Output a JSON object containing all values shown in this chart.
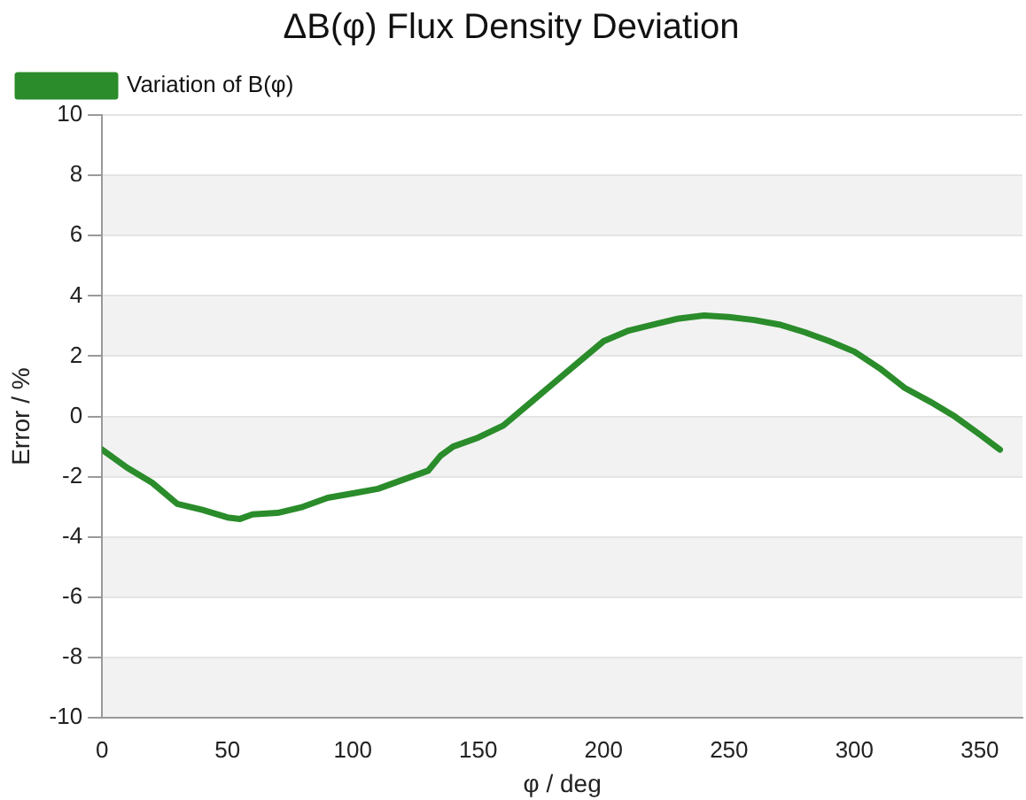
{
  "chart_data": {
    "type": "line",
    "title": "ΔB(φ) Flux Density Deviation",
    "xlabel": "φ / deg",
    "ylabel": "Error / %",
    "x": [
      0,
      10,
      20,
      30,
      40,
      50,
      55,
      60,
      70,
      80,
      90,
      100,
      110,
      120,
      130,
      135,
      140,
      150,
      160,
      170,
      180,
      190,
      200,
      210,
      220,
      230,
      240,
      250,
      260,
      270,
      280,
      290,
      300,
      310,
      320,
      330,
      340,
      350,
      358
    ],
    "series": [
      {
        "name": "Variation of B(φ)",
        "color": "#2a8c2a",
        "values": [
          -1.1,
          -1.7,
          -2.2,
          -2.9,
          -3.1,
          -3.35,
          -3.4,
          -3.25,
          -3.2,
          -3.0,
          -2.7,
          -2.55,
          -2.4,
          -2.1,
          -1.8,
          -1.3,
          -1.0,
          -0.7,
          -0.3,
          0.4,
          1.1,
          1.8,
          2.5,
          2.85,
          3.05,
          3.25,
          3.35,
          3.3,
          3.2,
          3.05,
          2.8,
          2.5,
          2.15,
          1.6,
          0.95,
          0.5,
          0.0,
          -0.6,
          -1.1
        ]
      }
    ],
    "xlim": [
      0,
      367
    ],
    "xticks": [
      0,
      50,
      100,
      150,
      200,
      250,
      300,
      350
    ],
    "ylim": [
      -10,
      10
    ],
    "yticks": [
      -10,
      -8,
      -6,
      -4,
      -2,
      0,
      2,
      4,
      6,
      8,
      10
    ],
    "grid": "y",
    "legend": "top left",
    "marker": "none",
    "line_style": "solid"
  }
}
